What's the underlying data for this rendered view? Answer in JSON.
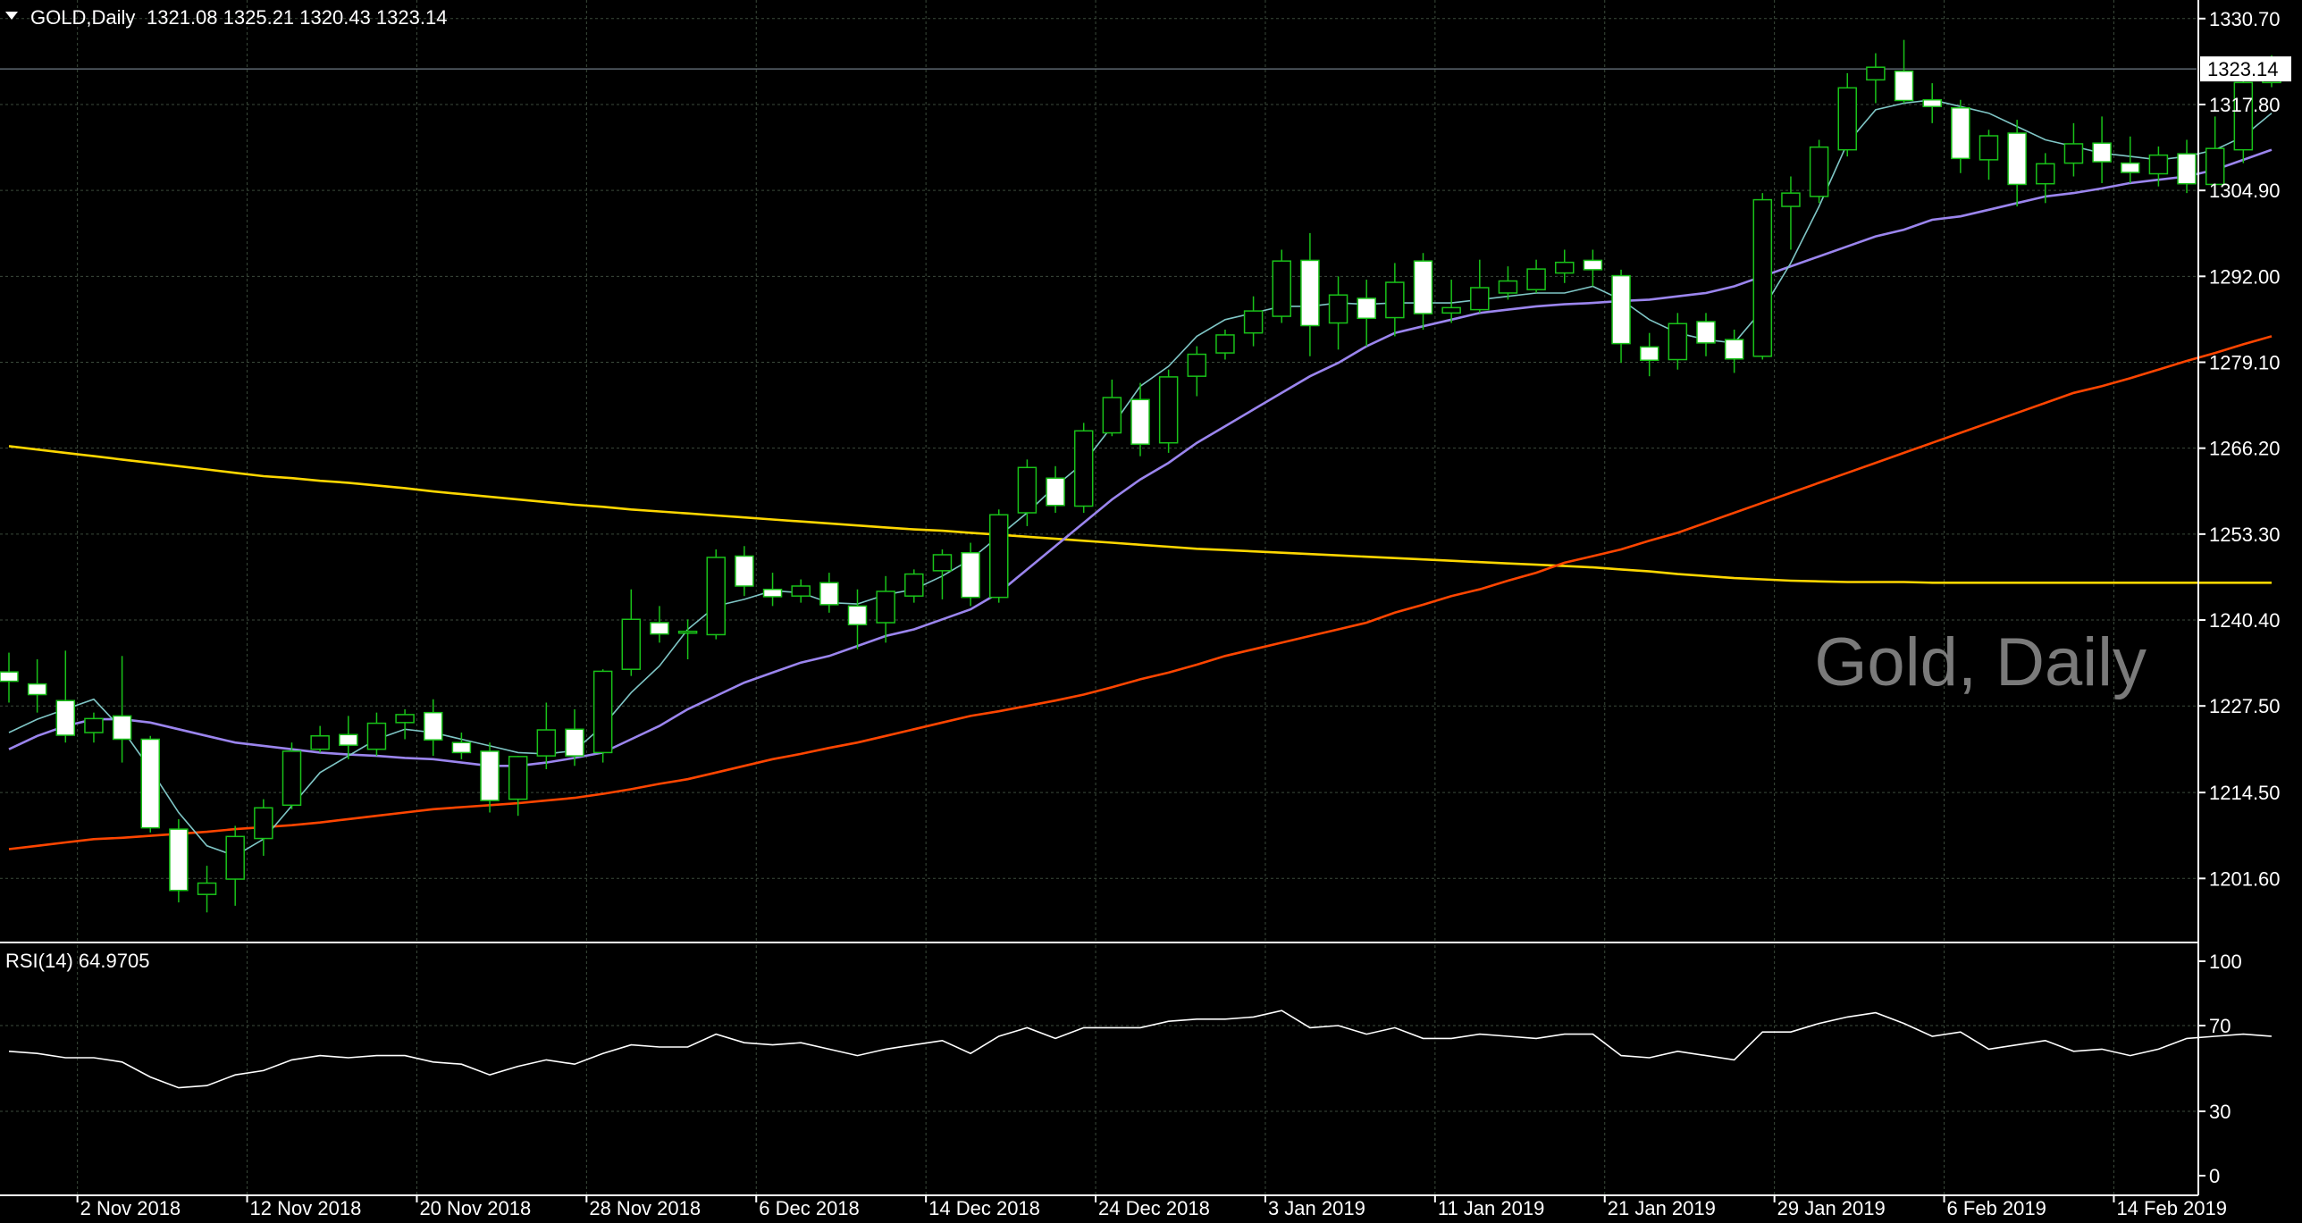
{
  "header": {
    "symbol": "GOLD,Daily",
    "ohlc": "1321.08 1325.21 1320.43 1323.14",
    "watermark": "Gold, Daily"
  },
  "colors": {
    "background": "#000000",
    "grid": "#3b4a3b",
    "bull_body": "#000000",
    "bear_body": "#ffffff",
    "wick": "#19c219",
    "ma_fast": "#7fc6c6",
    "ma_medium": "#9b85ee",
    "ma_slow": "#ff4500",
    "ma_long": "#ffd700",
    "rsi_line": "#ffffff",
    "axis_text": "#ffffff",
    "watermark": "#7a7a7a"
  },
  "price_axis": {
    "ticks": [
      "1330.70",
      "1317.80",
      "1304.90",
      "1292.00",
      "1279.10",
      "1266.20",
      "1253.30",
      "1240.40",
      "1227.50",
      "1214.50",
      "1201.60"
    ],
    "current_label": "1323.14"
  },
  "rsi_panel": {
    "label": "RSI(14) 64.9705",
    "ticks": [
      "100",
      "70",
      "30",
      "0"
    ]
  },
  "time_axis": {
    "labels": [
      "2 Nov 2018",
      "12 Nov 2018",
      "20 Nov 2018",
      "28 Nov 2018",
      "6 Dec 2018",
      "14 Dec 2018",
      "24 Dec 2018",
      "3 Jan 2019",
      "11 Jan 2019",
      "21 Jan 2019",
      "29 Jan 2019",
      "6 Feb 2019",
      "14 Feb 2019"
    ]
  },
  "chart_data": {
    "type": "candlestick",
    "title": "Gold, Daily",
    "ylim": [
      1194.5,
      1333.5
    ],
    "rsi_ylim": [
      0,
      100
    ],
    "rsi_levels": [
      70,
      30
    ],
    "candles": [
      [
        1232.6,
        1235.5,
        1228.0,
        1231.2
      ],
      [
        1230.8,
        1234.5,
        1226.5,
        1229.2
      ],
      [
        1228.3,
        1235.8,
        1222.0,
        1223.1
      ],
      [
        1223.5,
        1226.5,
        1222.0,
        1225.6
      ],
      [
        1226.0,
        1235.0,
        1219.0,
        1222.5
      ],
      [
        1222.5,
        1223.0,
        1208.5,
        1209.2
      ],
      [
        1209.0,
        1210.5,
        1198.0,
        1199.8
      ],
      [
        1199.2,
        1203.5,
        1196.5,
        1200.9
      ],
      [
        1201.5,
        1209.5,
        1197.5,
        1207.9
      ],
      [
        1207.6,
        1213.5,
        1205.0,
        1212.2
      ],
      [
        1212.6,
        1222.0,
        1212.0,
        1220.7
      ],
      [
        1221.0,
        1224.5,
        1220.5,
        1223.0
      ],
      [
        1223.2,
        1226.0,
        1219.5,
        1221.6
      ],
      [
        1221.0,
        1226.5,
        1220.0,
        1224.9
      ],
      [
        1225.0,
        1227.0,
        1222.5,
        1226.2
      ],
      [
        1226.5,
        1228.5,
        1220.0,
        1222.4
      ],
      [
        1222.0,
        1223.5,
        1219.5,
        1220.5
      ],
      [
        1220.7,
        1222.0,
        1211.5,
        1213.3
      ],
      [
        1213.5,
        1220.0,
        1211.0,
        1219.9
      ],
      [
        1220.0,
        1228.0,
        1218.0,
        1223.9
      ],
      [
        1224.0,
        1227.0,
        1218.5,
        1220.0
      ],
      [
        1220.5,
        1233.0,
        1219.0,
        1232.7
      ],
      [
        1233.0,
        1245.0,
        1232.0,
        1240.5
      ],
      [
        1240.0,
        1242.5,
        1237.0,
        1238.3
      ],
      [
        1238.5,
        1240.5,
        1234.5,
        1238.7
      ],
      [
        1238.2,
        1251.0,
        1237.5,
        1249.8
      ],
      [
        1250.0,
        1251.5,
        1244.0,
        1245.5
      ],
      [
        1245.0,
        1247.5,
        1242.5,
        1243.9
      ],
      [
        1244.0,
        1246.5,
        1243.0,
        1245.5
      ],
      [
        1246.0,
        1247.5,
        1241.5,
        1242.7
      ],
      [
        1242.5,
        1245.0,
        1236.0,
        1239.7
      ],
      [
        1240.0,
        1247.0,
        1237.0,
        1244.7
      ],
      [
        1244.0,
        1248.0,
        1243.0,
        1247.3
      ],
      [
        1247.8,
        1251.0,
        1243.5,
        1250.2
      ],
      [
        1250.5,
        1252.0,
        1242.5,
        1243.8
      ],
      [
        1243.8,
        1257.0,
        1243.0,
        1256.2
      ],
      [
        1256.5,
        1264.5,
        1254.5,
        1263.3
      ],
      [
        1261.7,
        1263.5,
        1256.5,
        1257.6
      ],
      [
        1257.5,
        1270.0,
        1256.5,
        1268.8
      ],
      [
        1268.5,
        1276.5,
        1268.0,
        1273.8
      ],
      [
        1273.5,
        1276.0,
        1265.0,
        1266.8
      ],
      [
        1267.0,
        1278.0,
        1265.5,
        1276.9
      ],
      [
        1277.0,
        1281.5,
        1274.0,
        1280.3
      ],
      [
        1280.5,
        1284.0,
        1279.5,
        1283.2
      ],
      [
        1283.5,
        1289.0,
        1281.5,
        1286.8
      ],
      [
        1286.0,
        1296.0,
        1285.0,
        1294.3
      ],
      [
        1294.4,
        1298.5,
        1280.0,
        1284.6
      ],
      [
        1285.0,
        1292.0,
        1281.0,
        1289.2
      ],
      [
        1288.7,
        1291.5,
        1281.5,
        1285.7
      ],
      [
        1285.8,
        1294.0,
        1283.0,
        1291.1
      ],
      [
        1294.3,
        1295.5,
        1284.0,
        1286.4
      ],
      [
        1286.5,
        1291.5,
        1285.0,
        1287.3
      ],
      [
        1287.0,
        1294.5,
        1286.5,
        1290.3
      ],
      [
        1289.5,
        1293.5,
        1288.5,
        1291.3
      ],
      [
        1290.0,
        1294.5,
        1289.5,
        1293.1
      ],
      [
        1292.5,
        1296.0,
        1291.0,
        1294.1
      ],
      [
        1294.4,
        1296.0,
        1290.5,
        1293.0
      ],
      [
        1292.1,
        1293.0,
        1279.0,
        1281.9
      ],
      [
        1281.4,
        1283.5,
        1277.0,
        1279.4
      ],
      [
        1279.5,
        1286.5,
        1278.0,
        1284.9
      ],
      [
        1285.2,
        1286.5,
        1280.0,
        1282.0
      ],
      [
        1282.5,
        1284.0,
        1277.5,
        1279.6
      ],
      [
        1280.0,
        1304.5,
        1279.5,
        1303.5
      ],
      [
        1302.5,
        1307.0,
        1296.0,
        1304.5
      ],
      [
        1304.0,
        1312.5,
        1303.0,
        1311.4
      ],
      [
        1311.0,
        1322.5,
        1310.0,
        1320.3
      ],
      [
        1321.5,
        1325.5,
        1318.0,
        1323.4
      ],
      [
        1322.8,
        1327.5,
        1318.0,
        1318.4
      ],
      [
        1318.5,
        1321.0,
        1315.0,
        1317.5
      ],
      [
        1317.3,
        1318.5,
        1307.5,
        1309.7
      ],
      [
        1309.5,
        1314.0,
        1306.5,
        1313.1
      ],
      [
        1313.5,
        1315.5,
        1302.5,
        1305.8
      ],
      [
        1305.9,
        1310.5,
        1303.0,
        1308.9
      ],
      [
        1309.0,
        1315.0,
        1307.0,
        1311.9
      ],
      [
        1312.0,
        1316.0,
        1306.0,
        1309.2
      ],
      [
        1309.0,
        1313.0,
        1306.0,
        1307.6
      ],
      [
        1307.4,
        1311.5,
        1305.5,
        1310.2
      ],
      [
        1310.4,
        1312.5,
        1304.5,
        1305.9
      ],
      [
        1305.8,
        1316.0,
        1304.5,
        1311.2
      ],
      [
        1311.0,
        1324.0,
        1309.0,
        1321.1
      ],
      [
        1321.1,
        1325.2,
        1320.4,
        1323.1
      ]
    ],
    "ma_fast": [
      1223.5,
      1225.5,
      1227.0,
      1228.5,
      1224.0,
      1218.0,
      1211.5,
      1206.5,
      1205.0,
      1207.5,
      1212.5,
      1217.5,
      1220.0,
      1222.5,
      1224.0,
      1223.5,
      1222.5,
      1221.5,
      1220.5,
      1220.3,
      1220.8,
      1224.5,
      1229.5,
      1233.5,
      1239.0,
      1242.5,
      1243.5,
      1244.8,
      1244.5,
      1243.0,
      1242.8,
      1244.2,
      1245.0,
      1247.0,
      1249.5,
      1253.0,
      1256.5,
      1260.5,
      1264.0,
      1269.5,
      1275.5,
      1278.5,
      1283.0,
      1285.5,
      1286.5,
      1287.5,
      1287.5,
      1288.0,
      1287.8,
      1288.0,
      1288.0,
      1288.0,
      1288.5,
      1289.0,
      1289.5,
      1289.5,
      1290.5,
      1288.5,
      1285.5,
      1283.5,
      1282.5,
      1282.0,
      1287.0,
      1294.0,
      1302.5,
      1312.0,
      1317.0,
      1318.0,
      1318.5,
      1317.5,
      1316.5,
      1314.5,
      1312.5,
      1311.5,
      1310.5,
      1310.0,
      1309.5,
      1310.0,
      1311.0,
      1313.0,
      1316.5
    ],
    "ma_medium": [
      1221.0,
      1223.0,
      1224.5,
      1225.5,
      1225.5,
      1225.0,
      1224.0,
      1223.0,
      1222.0,
      1221.5,
      1221.0,
      1220.5,
      1220.2,
      1220.0,
      1219.7,
      1219.5,
      1219.0,
      1218.5,
      1218.5,
      1219.0,
      1219.7,
      1220.5,
      1222.5,
      1224.5,
      1227.0,
      1229.0,
      1231.0,
      1232.5,
      1234.0,
      1235.0,
      1236.5,
      1238.0,
      1239.0,
      1240.5,
      1242.0,
      1244.5,
      1248.0,
      1251.5,
      1255.0,
      1258.5,
      1261.5,
      1264.0,
      1267.0,
      1269.5,
      1272.0,
      1274.5,
      1277.0,
      1279.0,
      1281.5,
      1283.5,
      1284.5,
      1285.5,
      1286.5,
      1287.0,
      1287.5,
      1287.8,
      1288.0,
      1288.3,
      1288.5,
      1289.0,
      1289.5,
      1290.5,
      1292.0,
      1293.5,
      1295.0,
      1296.5,
      1298.0,
      1299.0,
      1300.5,
      1301.0,
      1302.0,
      1303.0,
      1304.0,
      1304.5,
      1305.2,
      1306.0,
      1306.5,
      1307.0,
      1308.0,
      1309.5,
      1311.0
    ],
    "ma_slow": [
      1206.0,
      1206.5,
      1207.0,
      1207.5,
      1207.7,
      1208.0,
      1208.3,
      1208.6,
      1209.0,
      1209.3,
      1209.6,
      1210.0,
      1210.5,
      1211.0,
      1211.5,
      1212.0,
      1212.3,
      1212.6,
      1212.9,
      1213.3,
      1213.7,
      1214.3,
      1215.0,
      1215.8,
      1216.5,
      1217.5,
      1218.5,
      1219.5,
      1220.3,
      1221.2,
      1222.0,
      1223.0,
      1224.0,
      1225.0,
      1226.0,
      1226.7,
      1227.5,
      1228.3,
      1229.2,
      1230.3,
      1231.5,
      1232.5,
      1233.7,
      1235.0,
      1236.0,
      1237.0,
      1238.0,
      1239.0,
      1240.0,
      1241.5,
      1242.7,
      1244.0,
      1245.0,
      1246.3,
      1247.5,
      1249.0,
      1250.0,
      1251.0,
      1252.3,
      1253.5,
      1255.0,
      1256.5,
      1258.0,
      1259.5,
      1261.0,
      1262.5,
      1264.0,
      1265.5,
      1267.0,
      1268.5,
      1270.0,
      1271.5,
      1273.0,
      1274.5,
      1275.5,
      1276.7,
      1278.0,
      1279.3,
      1280.5,
      1281.8,
      1283.0
    ],
    "ma_long": [
      1266.5,
      1266.0,
      1265.5,
      1265.0,
      1264.5,
      1264.0,
      1263.5,
      1263.0,
      1262.5,
      1262.0,
      1261.7,
      1261.3,
      1261.0,
      1260.6,
      1260.2,
      1259.7,
      1259.3,
      1258.9,
      1258.5,
      1258.1,
      1257.7,
      1257.4,
      1257.0,
      1256.7,
      1256.4,
      1256.1,
      1255.8,
      1255.5,
      1255.2,
      1254.9,
      1254.6,
      1254.3,
      1254.0,
      1253.8,
      1253.5,
      1253.2,
      1252.9,
      1252.6,
      1252.3,
      1252.0,
      1251.7,
      1251.4,
      1251.1,
      1250.9,
      1250.7,
      1250.5,
      1250.3,
      1250.1,
      1249.9,
      1249.7,
      1249.5,
      1249.3,
      1249.1,
      1248.9,
      1248.7,
      1248.5,
      1248.3,
      1248.0,
      1247.7,
      1247.3,
      1247.0,
      1246.7,
      1246.5,
      1246.3,
      1246.2,
      1246.1,
      1246.1,
      1246.1,
      1246.0,
      1246.0,
      1246.0,
      1246.0,
      1246.0,
      1246.0,
      1246.0,
      1246.0,
      1246.0,
      1246.0,
      1246.0,
      1246.0,
      1246.0
    ],
    "rsi": [
      58,
      57,
      55,
      55,
      53,
      46,
      41,
      42,
      47,
      49,
      54,
      56,
      55,
      56,
      56,
      53,
      52,
      47,
      51,
      54,
      52,
      57,
      61,
      60,
      60,
      66,
      62,
      61,
      62,
      59,
      56,
      59,
      61,
      63,
      57,
      65,
      69,
      64,
      69,
      69,
      69,
      72,
      73,
      73,
      74,
      77,
      69,
      70,
      66,
      69,
      64,
      64,
      66,
      65,
      64,
      66,
      66,
      56,
      55,
      58,
      56,
      54,
      67,
      67,
      71,
      74,
      76,
      71,
      65,
      67,
      59,
      61,
      63,
      58,
      59,
      56,
      59,
      64,
      65,
      66,
      65
    ]
  }
}
